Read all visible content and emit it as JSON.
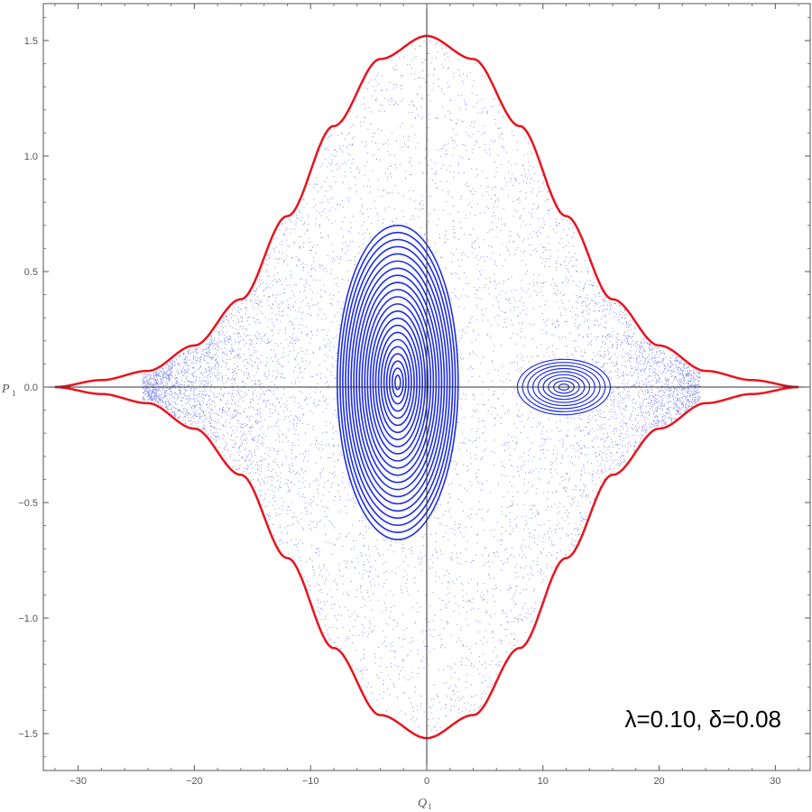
{
  "chart_data": {
    "type": "scatter",
    "title": "",
    "xlabel": "Q",
    "xlabel_sub": "1",
    "ylabel": "P",
    "ylabel_sub": "1",
    "xlim": [
      -33,
      33
    ],
    "ylim": [
      -1.66,
      1.66
    ],
    "x_ticks": [
      -30,
      -20,
      -10,
      0,
      10,
      20,
      30
    ],
    "x_tick_labels": [
      "−30",
      "−20",
      "−10",
      "0",
      "10",
      "20",
      "30"
    ],
    "y_ticks": [
      -1.5,
      -1.0,
      -0.5,
      0.0,
      0.5,
      1.0,
      1.5
    ],
    "y_tick_labels": [
      "−1.5",
      "−1.0",
      "−0.5",
      "0.0",
      "0.5",
      "1.0",
      "1.5"
    ],
    "annotation": "λ=0.10, δ=0.08",
    "grid": false,
    "colors": {
      "orbits": "#1f2fe0",
      "boundary": "#e8141e",
      "axes": "#333333"
    },
    "series": [
      {
        "kind": "boundary",
        "color": "#e8141e",
        "x": [
          -32,
          -28,
          -24,
          -20,
          -16,
          -12,
          -8,
          -4,
          0,
          4,
          8,
          12,
          16,
          20,
          24,
          28,
          32
        ],
        "y": [
          0.0,
          0.03,
          0.07,
          0.18,
          0.38,
          0.74,
          1.13,
          1.42,
          1.52,
          1.42,
          1.13,
          0.74,
          0.38,
          0.18,
          0.07,
          0.03,
          0.0
        ]
      },
      {
        "kind": "regular-island",
        "center": [
          -2.5,
          0.02
        ],
        "semi_axes": [
          5.2,
          0.68
        ]
      },
      {
        "kind": "regular-island",
        "center": [
          11.8,
          0.0
        ],
        "semi_axes": [
          4.0,
          0.12
        ]
      },
      {
        "kind": "chaotic-sea",
        "x_range": [
          -24.5,
          23.5
        ]
      }
    ]
  }
}
